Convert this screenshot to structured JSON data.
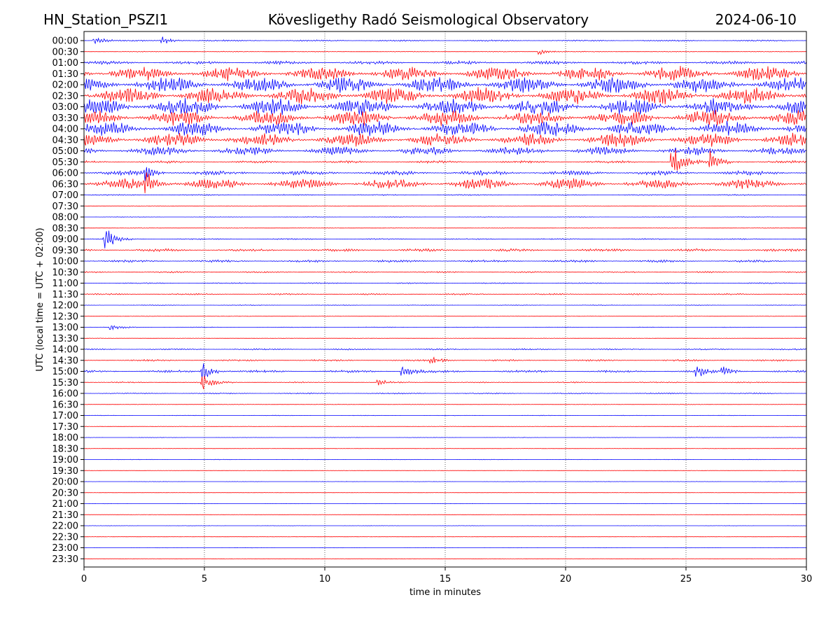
{
  "header": {
    "station": "HN_Station_PSZI1",
    "observatory": "Kövesligethy Radó Seismological Observatory",
    "date": "2024-06-10"
  },
  "chart_data": {
    "type": "line",
    "xlabel": "time in minutes",
    "ylabel": "UTC (local time = UTC + 02:00)",
    "xlim": [
      0,
      30
    ],
    "x_ticks": [
      0,
      5,
      10,
      15,
      20,
      25,
      30
    ],
    "x_tick_labels": [
      "0",
      "5",
      "10",
      "15",
      "20",
      "25",
      "30"
    ],
    "grid": "vertical dotted at each x tick",
    "colors": {
      "even_rows": "#0000ff",
      "odd_rows": "#ff0000"
    },
    "rows": [
      {
        "label": "00:00",
        "amplitude": 0.15
      },
      {
        "label": "00:30",
        "amplitude": 0.08
      },
      {
        "label": "01:00",
        "amplitude": 0.35
      },
      {
        "label": "01:30",
        "amplitude": 1.6
      },
      {
        "label": "02:00",
        "amplitude": 1.7
      },
      {
        "label": "02:30",
        "amplitude": 1.8
      },
      {
        "label": "03:00",
        "amplitude": 1.8
      },
      {
        "label": "03:30",
        "amplitude": 1.7
      },
      {
        "label": "04:00",
        "amplitude": 1.6
      },
      {
        "label": "04:30",
        "amplitude": 1.4
      },
      {
        "label": "05:00",
        "amplitude": 0.9
      },
      {
        "label": "05:30",
        "amplitude": 0.25
      },
      {
        "label": "06:00",
        "amplitude": 0.5
      },
      {
        "label": "06:30",
        "amplitude": 1.1
      },
      {
        "label": "07:00",
        "amplitude": 0.12
      },
      {
        "label": "07:30",
        "amplitude": 0.05
      },
      {
        "label": "08:00",
        "amplitude": 0.05
      },
      {
        "label": "08:30",
        "amplitude": 0.06
      },
      {
        "label": "09:00",
        "amplitude": 0.12
      },
      {
        "label": "09:30",
        "amplitude": 0.3
      },
      {
        "label": "10:00",
        "amplitude": 0.25
      },
      {
        "label": "10:30",
        "amplitude": 0.15
      },
      {
        "label": "11:00",
        "amplitude": 0.12
      },
      {
        "label": "11:30",
        "amplitude": 0.15
      },
      {
        "label": "12:00",
        "amplitude": 0.06
      },
      {
        "label": "12:30",
        "amplitude": 0.05
      },
      {
        "label": "13:00",
        "amplitude": 0.06
      },
      {
        "label": "13:30",
        "amplitude": 0.05
      },
      {
        "label": "14:00",
        "amplitude": 0.15
      },
      {
        "label": "14:30",
        "amplitude": 0.18
      },
      {
        "label": "15:00",
        "amplitude": 0.25
      },
      {
        "label": "15:30",
        "amplitude": 0.12
      },
      {
        "label": "16:00",
        "amplitude": 0.12
      },
      {
        "label": "16:30",
        "amplitude": 0.07
      },
      {
        "label": "17:00",
        "amplitude": 0.05
      },
      {
        "label": "17:30",
        "amplitude": 0.05
      },
      {
        "label": "18:00",
        "amplitude": 0.04
      },
      {
        "label": "18:30",
        "amplitude": 0.04
      },
      {
        "label": "19:00",
        "amplitude": 0.05
      },
      {
        "label": "19:30",
        "amplitude": 0.04
      },
      {
        "label": "20:00",
        "amplitude": 0.03
      },
      {
        "label": "20:30",
        "amplitude": 0.03
      },
      {
        "label": "21:00",
        "amplitude": 0.03
      },
      {
        "label": "21:30",
        "amplitude": 0.04
      },
      {
        "label": "22:00",
        "amplitude": 0.03
      },
      {
        "label": "22:30",
        "amplitude": 0.03
      },
      {
        "label": "23:00",
        "amplitude": 0.03
      },
      {
        "label": "23:30",
        "amplitude": 0.03
      }
    ],
    "events": [
      {
        "row": "00:00",
        "minute": 0.5,
        "amplitude": 0.9
      },
      {
        "row": "00:00",
        "minute": 3.3,
        "amplitude": 0.8
      },
      {
        "row": "06:00",
        "minute": 2.6,
        "amplitude": 1.6
      },
      {
        "row": "06:30",
        "minute": 2.6,
        "amplitude": 2.2
      },
      {
        "row": "05:30",
        "minute": 24.5,
        "amplitude": 3.0
      },
      {
        "row": "05:30",
        "minute": 26.1,
        "amplitude": 2.5
      },
      {
        "row": "15:00",
        "minute": 5.0,
        "amplitude": 1.8
      },
      {
        "row": "15:30",
        "minute": 5.0,
        "amplitude": 1.6
      },
      {
        "row": "15:00",
        "minute": 13.3,
        "amplitude": 1.2
      },
      {
        "row": "15:00",
        "minute": 25.5,
        "amplitude": 1.1
      },
      {
        "row": "15:00",
        "minute": 26.6,
        "amplitude": 1.0
      },
      {
        "row": "14:30",
        "minute": 14.5,
        "amplitude": 0.8
      },
      {
        "row": "15:30",
        "minute": 12.3,
        "amplitude": 0.6
      },
      {
        "row": "13:00",
        "minute": 1.2,
        "amplitude": 0.7
      },
      {
        "row": "09:00",
        "minute": 0.95,
        "amplitude": 2.0
      },
      {
        "row": "00:30",
        "minute": 19.0,
        "amplitude": 0.7
      }
    ]
  }
}
